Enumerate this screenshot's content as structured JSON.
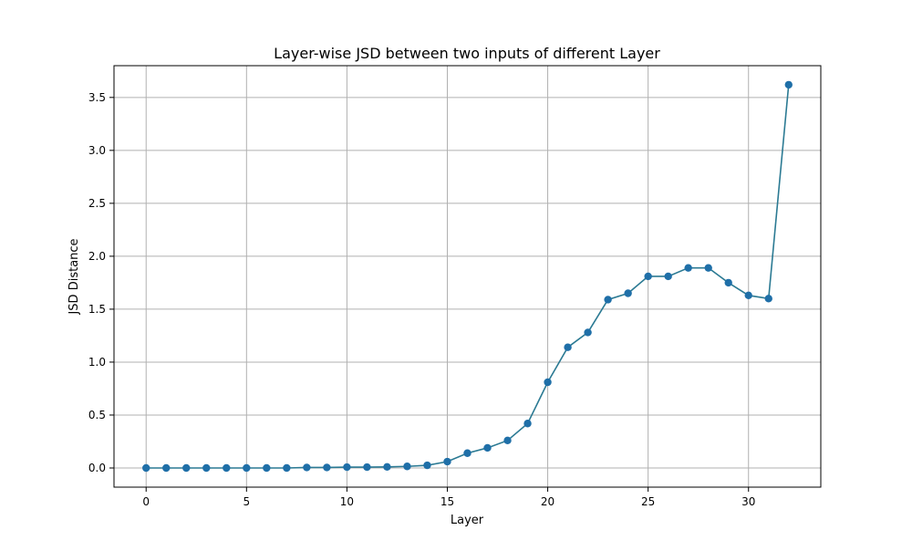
{
  "chart_data": {
    "type": "line",
    "title": "Layer-wise JSD between two inputs of different Layer",
    "xlabel": "Layer",
    "ylabel": "JSD Distance",
    "x": [
      0,
      1,
      2,
      3,
      4,
      5,
      6,
      7,
      8,
      9,
      10,
      11,
      12,
      13,
      14,
      15,
      16,
      17,
      18,
      19,
      20,
      21,
      22,
      23,
      24,
      25,
      26,
      27,
      28,
      29,
      30,
      31,
      32
    ],
    "series": [
      {
        "values": [
          0.0,
          0.0,
          0.0,
          0.0,
          0.0,
          0.0,
          0.0,
          0.0,
          0.005,
          0.005,
          0.008,
          0.008,
          0.01,
          0.015,
          0.025,
          0.06,
          0.14,
          0.19,
          0.26,
          0.42,
          0.81,
          1.14,
          1.28,
          1.59,
          1.65,
          1.81,
          1.81,
          1.89,
          1.89,
          1.75,
          1.63,
          1.6,
          3.62
        ]
      }
    ],
    "xlim": [
      -1.6,
      33.6
    ],
    "ylim": [
      -0.181,
      3.8
    ],
    "xticks": [
      0,
      5,
      10,
      15,
      20,
      25,
      30
    ],
    "xtick_labels": [
      "0",
      "5",
      "10",
      "15",
      "20",
      "25",
      "30"
    ],
    "yticks": [
      0.0,
      0.5,
      1.0,
      1.5,
      2.0,
      2.5,
      3.0,
      3.5
    ],
    "ytick_labels": [
      "0.0",
      "0.5",
      "1.0",
      "1.5",
      "2.0",
      "2.5",
      "3.0",
      "3.5"
    ],
    "grid": true,
    "legend": false,
    "marker": "circle",
    "colors": {
      "line": "#2b7a93",
      "marker": "#1f6fa8",
      "grid": "#b0b0b0",
      "axis": "#000000"
    }
  }
}
